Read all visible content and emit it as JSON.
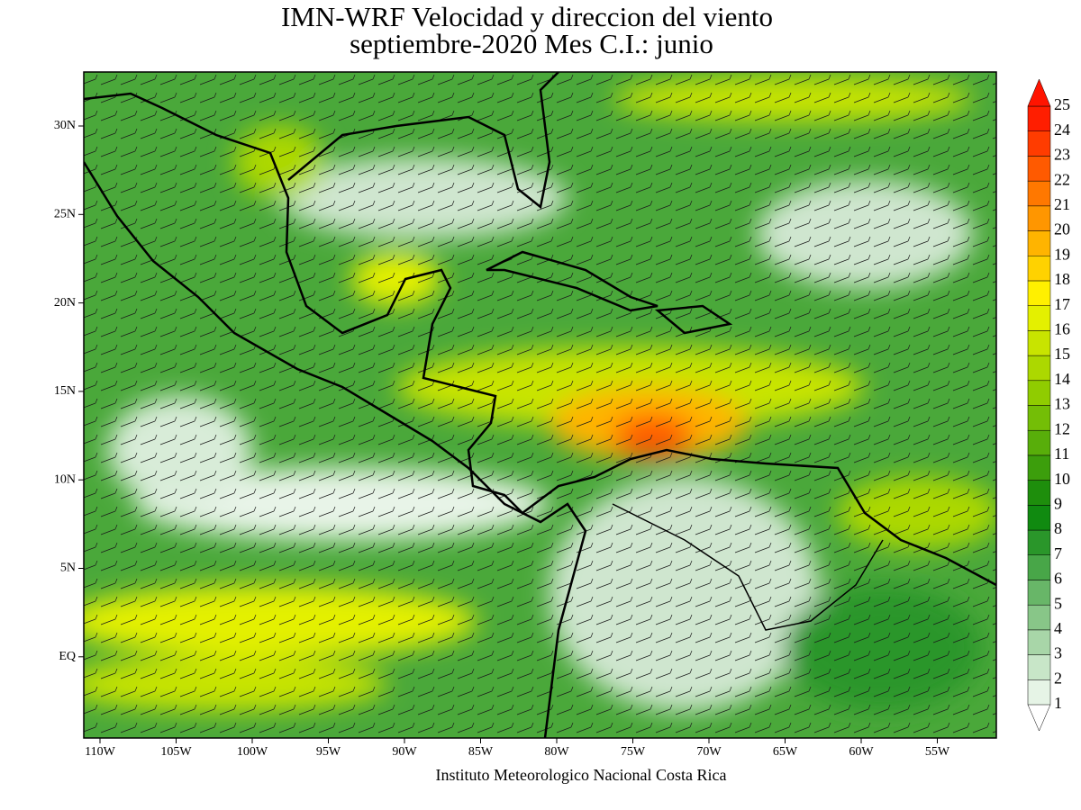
{
  "header": {
    "title_line1": "IMN-WRF Velocidad y direccion del viento",
    "title_line2": "septiembre-2020 Mes C.I.: junio"
  },
  "axes": {
    "lon_ticks": [
      "110W",
      "105W",
      "100W",
      "95W",
      "90W",
      "85W",
      "80W",
      "75W",
      "70W",
      "65W",
      "60W",
      "55W"
    ],
    "lat_ticks": [
      "30N",
      "25N",
      "20N",
      "15N",
      "10N",
      "5N",
      "EQ"
    ]
  },
  "colorbar": {
    "labels": [
      1,
      2,
      3,
      4,
      5,
      6,
      7,
      8,
      9,
      10,
      11,
      12,
      13,
      14,
      15,
      16,
      17,
      18,
      19,
      20,
      21,
      22,
      23,
      24,
      25
    ],
    "colors": [
      "#e6f4e6",
      "#c8e6c8",
      "#a8d6a8",
      "#88c688",
      "#68b668",
      "#48a648",
      "#2a962a",
      "#108a10",
      "#1e8e0c",
      "#3c9e0c",
      "#58ae0a",
      "#74be06",
      "#90cc00",
      "#acd800",
      "#c8e400",
      "#e4f000",
      "#fff000",
      "#ffd200",
      "#ffb400",
      "#ff9600",
      "#ff7800",
      "#ff5a00",
      "#ff3c00",
      "#ff1e00"
    ],
    "over_color": "#ff1400"
  },
  "footer": {
    "credit": "Instituto Meteorologico Nacional Costa Rica"
  }
}
